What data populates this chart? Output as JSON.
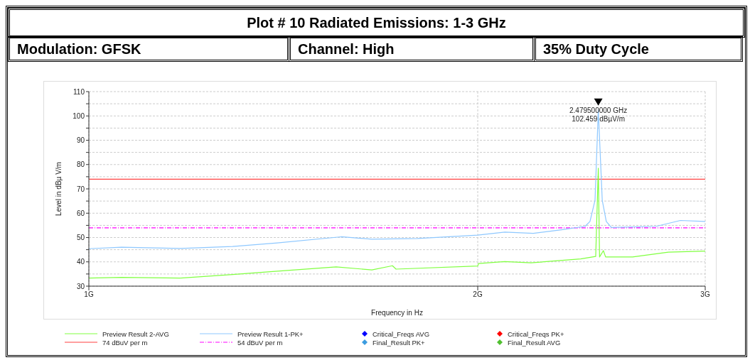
{
  "chart_data": {
    "type": "line",
    "title": "Plot # 10 Radiated Emissions: 1-3 GHz",
    "annotations": [
      "Modulation: GFSK",
      "Channel: High",
      "35% Duty Cycle",
      {
        "text": "2.479500000 GHz\n102.459 dBµV/m",
        "x": 2.4795,
        "y": 102.459
      }
    ],
    "xlabel": "Frequency in Hz",
    "ylabel": "Level in dBµ V/m",
    "log": "x",
    "xlim": [
      1,
      3
    ],
    "xticks": [
      {
        "value": 1,
        "label": "1G"
      },
      {
        "value": 2,
        "label": "2G"
      },
      {
        "value": 3,
        "label": "3G"
      }
    ],
    "ylim": [
      30,
      110
    ],
    "yticks": [
      30,
      {
        "value": 35,
        "label": null
      },
      40,
      {
        "value": 45,
        "label": null
      },
      50,
      {
        "value": 55,
        "label": null
      },
      60,
      {
        "value": 65,
        "label": null
      },
      70,
      {
        "value": 75,
        "label": null
      },
      80,
      {
        "value": 85,
        "label": null
      },
      90,
      {
        "value": 95,
        "label": null
      },
      100,
      {
        "value": 105,
        "label": null
      },
      110
    ],
    "grid": true,
    "legend": "bottom",
    "line_style": "solid",
    "series": [
      {
        "name": "Preview Result 2-AVG",
        "color": "#80ff40",
        "x": [
          1,
          1.06,
          1.176,
          1.292,
          1.376,
          1.554,
          1.656,
          1.718,
          1.729,
          2,
          2.003,
          2.099,
          2.199,
          2.403,
          2.468,
          2.4795,
          2.485,
          2.502,
          2.512,
          2.636,
          2.809,
          3
        ],
        "values": [
          33.3,
          33.6,
          33.3,
          34.8,
          35.9,
          37.9,
          36.7,
          38.4,
          37.0,
          38.3,
          39.3,
          40.1,
          39.6,
          41.2,
          42.2,
          78.5,
          42.0,
          44.6,
          42.0,
          42.0,
          44.0,
          44.4
        ]
      },
      {
        "name": "Preview Result 1-PK+",
        "color": "#8ec8ff",
        "x": [
          1,
          1.06,
          1.176,
          1.292,
          1.399,
          1.568,
          1.656,
          1.796,
          2,
          2.099,
          2.208,
          2.322,
          2.422,
          2.443,
          2.465,
          2.4795,
          2.497,
          2.515,
          2.538,
          2.749,
          2.87,
          3
        ],
        "values": [
          45.4,
          46.0,
          45.5,
          46.3,
          47.8,
          50.3,
          49.3,
          49.6,
          51.0,
          52.2,
          51.7,
          53.2,
          54.6,
          56.6,
          65.3,
          102.459,
          65.3,
          56.6,
          54.1,
          54.6,
          57.0,
          56.6
        ]
      },
      {
        "name": "Critical_Freqs AVG",
        "type": "scatter",
        "marker": "diamond",
        "color": "#0000ff"
      },
      {
        "name": "Critical_Freqs PK+",
        "type": "scatter",
        "marker": "diamond",
        "color": "#ff0000"
      },
      {
        "name": "Final_Result PK+",
        "type": "scatter",
        "marker": "diamond",
        "color": "#3c9ce0"
      },
      {
        "name": "Final_Result AVG",
        "type": "scatter",
        "marker": "diamond",
        "color": "#50c030"
      }
    ],
    "ref_lines": [
      {
        "axis": "y",
        "value": 74,
        "label": "74 dBuV per m",
        "color": "#ff4040",
        "line_style": "solid"
      },
      {
        "axis": "y",
        "value": 54,
        "label": "54 dBuV per m",
        "color": "#ff00ff",
        "line_style": "dashed"
      }
    ]
  }
}
